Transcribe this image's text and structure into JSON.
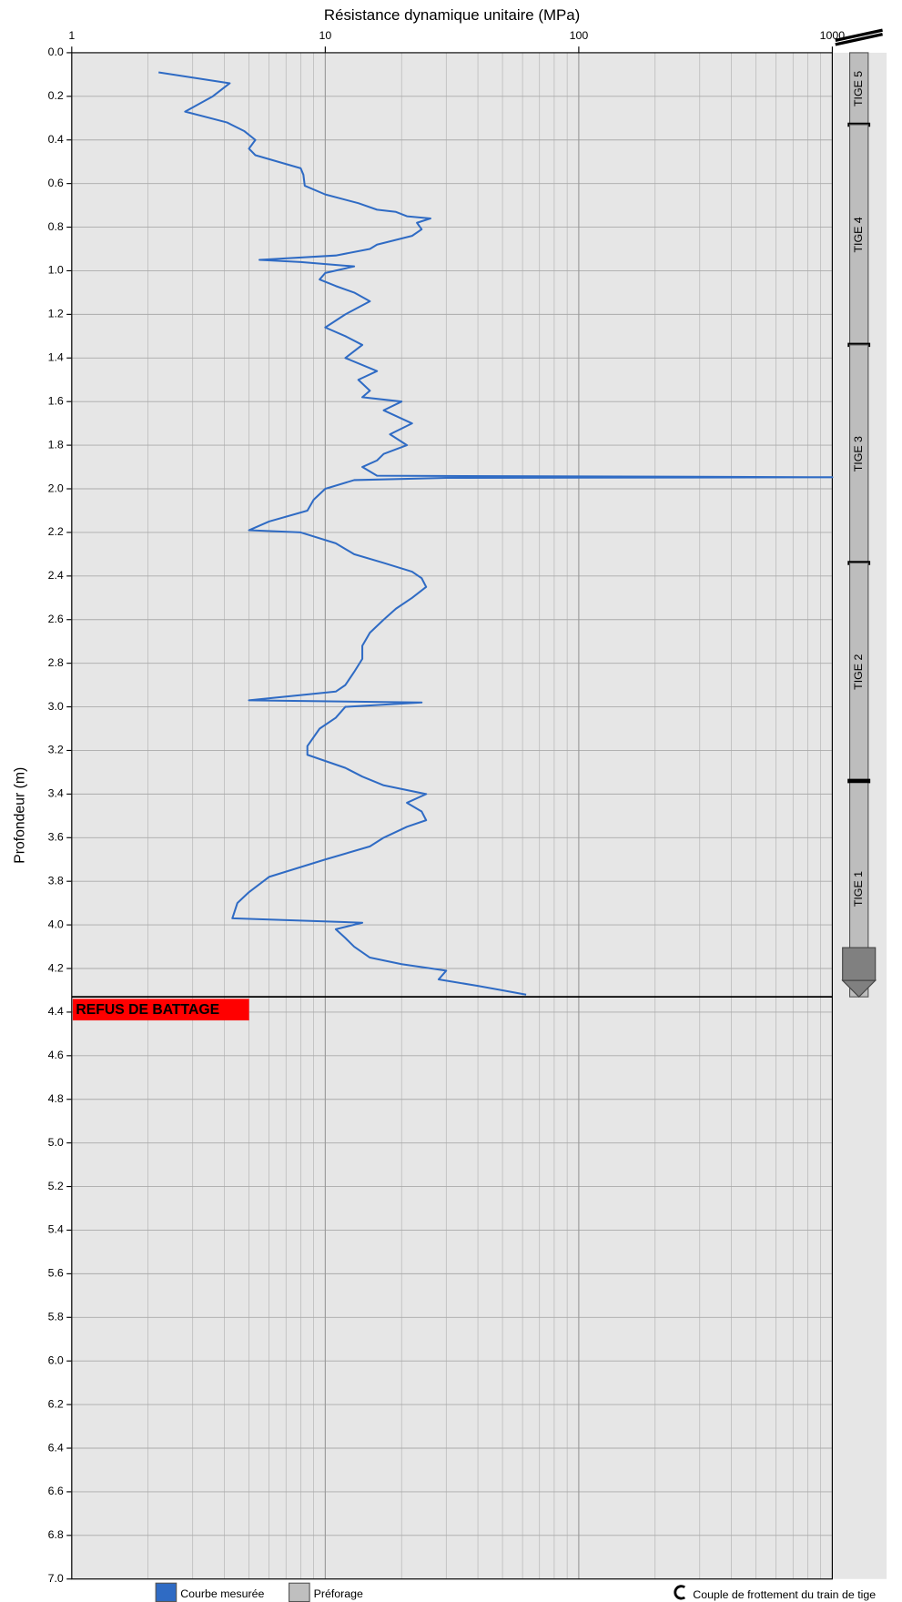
{
  "chart_data": {
    "type": "line",
    "title": "Résistance dynamique unitaire (MPa)",
    "y_label": "Profondeur (m)",
    "xscale": "log",
    "xlim": [
      1,
      1000
    ],
    "xticks": [
      1,
      10,
      100,
      1000
    ],
    "ylim": [
      0,
      7
    ],
    "yticks": [
      {
        "value": 0,
        "label": "0.0"
      },
      0.2,
      0.4,
      0.6,
      0.8,
      {
        "value": 1,
        "label": "1.0"
      },
      1.2,
      1.4,
      1.6,
      1.8,
      {
        "value": 2,
        "label": "2.0"
      },
      2.2,
      2.4,
      2.6,
      2.8,
      {
        "value": 3,
        "label": "3.0"
      },
      3.2,
      3.4,
      3.6,
      3.8,
      {
        "value": 4,
        "label": "4.0"
      },
      4.2,
      4.4,
      4.6,
      4.8,
      {
        "value": 5,
        "label": "5.0"
      },
      5.2,
      5.4,
      5.6,
      5.8,
      {
        "value": 6,
        "label": "6.0"
      },
      6.2,
      6.4,
      6.6,
      6.8,
      {
        "value": 7,
        "label": "7.0"
      }
    ],
    "grid": true,
    "series": [
      {
        "name": "Courbe mesurée",
        "color": "#2f6bc4",
        "x": [
          2.2,
          4.2,
          3.6,
          2.8,
          4.1,
          4.8,
          5.3,
          5.0,
          5.3,
          8.0,
          8.2,
          8.3,
          10,
          13.5,
          16,
          19,
          21,
          26,
          23,
          24,
          22,
          16,
          15,
          11,
          5.5,
          8,
          13,
          10,
          9.5,
          11,
          13,
          15,
          12,
          10,
          12,
          14,
          12,
          16,
          13.5,
          15,
          14,
          20,
          17,
          22,
          18,
          21,
          17,
          16,
          14,
          16,
          1000,
          30,
          13,
          10,
          9,
          8.5,
          6,
          5.0,
          8,
          11,
          13,
          17,
          22,
          24,
          25,
          22,
          19,
          17,
          15,
          14,
          14,
          13,
          12,
          11,
          5.0,
          24,
          12,
          11,
          9.5,
          8.5,
          8.5,
          12,
          14,
          17,
          25,
          21,
          24,
          25,
          21,
          17,
          15,
          10,
          6,
          5.0,
          4.5,
          4.3,
          14,
          11,
          12,
          13,
          15,
          20,
          30,
          28,
          40,
          50,
          62
        ],
        "y": [
          0.09,
          0.14,
          0.2,
          0.27,
          0.32,
          0.36,
          0.4,
          0.44,
          0.47,
          0.53,
          0.56,
          0.61,
          0.65,
          0.69,
          0.72,
          0.73,
          0.75,
          0.76,
          0.78,
          0.81,
          0.84,
          0.88,
          0.9,
          0.93,
          0.95,
          0.96,
          0.98,
          1.01,
          1.04,
          1.07,
          1.1,
          1.14,
          1.2,
          1.26,
          1.3,
          1.34,
          1.4,
          1.46,
          1.5,
          1.55,
          1.58,
          1.6,
          1.64,
          1.7,
          1.75,
          1.8,
          1.84,
          1.87,
          1.9,
          1.94,
          1.947,
          1.95,
          1.96,
          2.0,
          2.05,
          2.1,
          2.15,
          2.19,
          2.2,
          2.25,
          2.3,
          2.34,
          2.38,
          2.41,
          2.45,
          2.5,
          2.55,
          2.6,
          2.66,
          2.72,
          2.78,
          2.84,
          2.9,
          2.93,
          2.97,
          2.98,
          3.0,
          3.05,
          3.1,
          3.18,
          3.22,
          3.28,
          3.32,
          3.36,
          3.4,
          3.44,
          3.48,
          3.52,
          3.55,
          3.6,
          3.64,
          3.7,
          3.78,
          3.85,
          3.9,
          3.97,
          3.99,
          4.02,
          4.06,
          4.1,
          4.15,
          4.18,
          4.21,
          4.25,
          4.28,
          4.3,
          4.32
        ]
      }
    ],
    "refusal": {
      "label": "REFUS DE BATTAGE",
      "depth": 4.33,
      "color": "#ff0000"
    },
    "rods": [
      {
        "label": "TIGE 5",
        "top": 0,
        "bottom": 0.33
      },
      {
        "label": "TIGE 4",
        "top": 0.33,
        "bottom": 1.34
      },
      {
        "label": "TIGE 3",
        "top": 1.34,
        "bottom": 2.34
      },
      {
        "label": "TIGE 2",
        "top": 2.34,
        "bottom": 3.34
      },
      {
        "label": "TIGE 1",
        "top": 3.34,
        "bottom": 4.33
      }
    ],
    "legend_extra": [
      {
        "name": "Préforage",
        "color": "#bfbfbf"
      },
      {
        "name": "Couple de frottement du train de tige"
      }
    ]
  }
}
